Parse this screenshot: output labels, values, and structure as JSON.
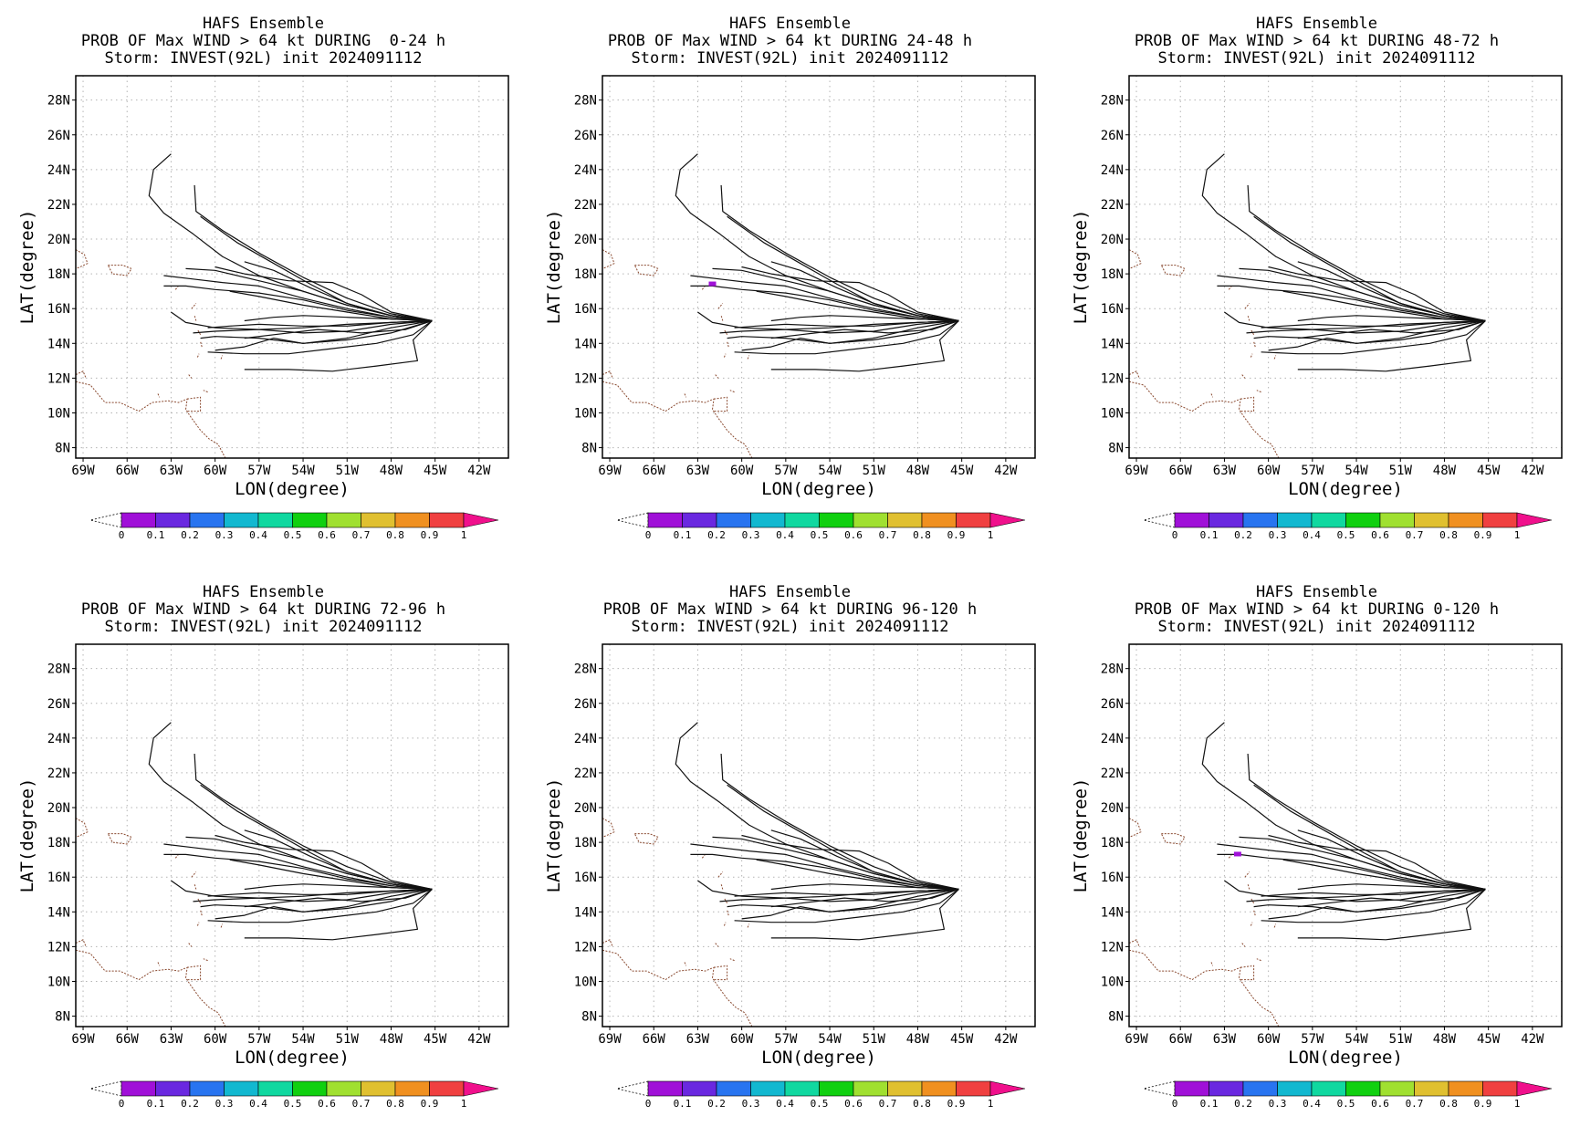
{
  "common": {
    "line1": "HAFS Ensemble",
    "line3": "Storm: INVEST(92L) init 2024091112",
    "xlabel": "LON(degree)",
    "ylabel": "LAT(degree)",
    "lon_ticks": [
      "69W",
      "66W",
      "63W",
      "60W",
      "57W",
      "54W",
      "51W",
      "48W",
      "45W",
      "42W"
    ],
    "lat_ticks": [
      "28N",
      "26N",
      "24N",
      "22N",
      "20N",
      "18N",
      "16N",
      "14N",
      "12N",
      "10N",
      "8N"
    ],
    "colorbar_labels": [
      "0",
      "0.1",
      "0.2",
      "0.3",
      "0.4",
      "0.5",
      "0.6",
      "0.7",
      "0.8",
      "0.9",
      "1"
    ],
    "colorbar_colors": [
      "#ffffff",
      "#a010d8",
      "#6a28e0",
      "#2874f0",
      "#12b8d0",
      "#10d8a0",
      "#10d010",
      "#a0e030",
      "#e0c030",
      "#f09020",
      "#f04040",
      "#f0108c"
    ]
  },
  "chart_data": [
    {
      "type": "map",
      "line2": "PROB OF Max WIND > 64 kt DURING  0-24 h",
      "lon_range": [
        -69.5,
        -40
      ],
      "lat_range": [
        7.4,
        29.4
      ],
      "max_prob": "",
      "prob_marks": []
    },
    {
      "type": "map",
      "line2": "PROB OF Max WIND > 64 kt DURING 24-48 h",
      "lon_range": [
        -69.5,
        -40
      ],
      "lat_range": [
        7.4,
        29.4
      ],
      "max_prob": "",
      "prob_marks": [
        {
          "lon": -62.0,
          "lat": 17.4,
          "bin": "0-0.1"
        }
      ]
    },
    {
      "type": "map",
      "line2": "PROB OF Max WIND > 64 kt DURING 48-72 h",
      "lon_range": [
        -69.5,
        -40
      ],
      "lat_range": [
        7.4,
        29.4
      ],
      "max_prob": "",
      "prob_marks": []
    },
    {
      "type": "map",
      "line2": "PROB OF Max WIND > 64 kt DURING 72-96 h",
      "lon_range": [
        -69.5,
        -40
      ],
      "lat_range": [
        7.4,
        29.4
      ],
      "max_prob": "",
      "prob_marks": []
    },
    {
      "type": "map",
      "line2": "PROB OF Max WIND > 64 kt DURING 96-120 h",
      "lon_range": [
        -69.5,
        -40
      ],
      "lat_range": [
        7.4,
        29.4
      ],
      "max_prob": "",
      "prob_marks": []
    },
    {
      "type": "map",
      "line2": "PROB OF Max WIND > 64 kt DURING 0-120 h",
      "lon_range": [
        -69.5,
        -40
      ],
      "lat_range": [
        7.4,
        29.4
      ],
      "max_prob": "",
      "prob_marks": [
        {
          "lon": -62.1,
          "lat": 17.3,
          "bin": "0-0.1"
        }
      ]
    }
  ],
  "tracks": [
    [
      [
        -45.2,
        15.3
      ],
      [
        -48,
        15.6
      ],
      [
        -51,
        16.2
      ],
      [
        -54,
        17.0
      ],
      [
        -57,
        17.9
      ],
      [
        -59.5,
        19.0
      ],
      [
        -61.5,
        20.3
      ],
      [
        -63.5,
        21.5
      ],
      [
        -64.5,
        22.5
      ],
      [
        -64.2,
        24.0
      ],
      [
        -63.0,
        24.9
      ]
    ],
    [
      [
        -45.2,
        15.3
      ],
      [
        -48,
        15.7
      ],
      [
        -51,
        16.6
      ],
      [
        -54,
        17.8
      ],
      [
        -57,
        19.2
      ],
      [
        -59.5,
        20.5
      ],
      [
        -61.3,
        21.6
      ],
      [
        -61.4,
        23.1
      ]
    ],
    [
      [
        -45.2,
        15.3
      ],
      [
        -48,
        15.6
      ],
      [
        -51,
        16.3
      ],
      [
        -53.5,
        17.4
      ],
      [
        -56,
        18.6
      ],
      [
        -58.5,
        19.8
      ],
      [
        -61,
        21.3
      ]
    ],
    [
      [
        -45.2,
        15.3
      ],
      [
        -48,
        15.6
      ],
      [
        -51,
        16.2
      ],
      [
        -54,
        17.0
      ],
      [
        -57,
        17.6
      ],
      [
        -60,
        18.2
      ],
      [
        -62,
        18.3
      ]
    ],
    [
      [
        -45.2,
        15.3
      ],
      [
        -48,
        15.5
      ],
      [
        -51,
        16.0
      ],
      [
        -54,
        16.6
      ],
      [
        -57,
        17.3
      ],
      [
        -59.5,
        17.5
      ],
      [
        -61.5,
        17.7
      ],
      [
        -63.5,
        17.9
      ]
    ],
    [
      [
        -45.2,
        15.3
      ],
      [
        -48,
        15.6
      ],
      [
        -51,
        16.3
      ],
      [
        -53.5,
        17.2
      ],
      [
        -56,
        18.2
      ],
      [
        -58,
        18.7
      ]
    ],
    [
      [
        -45.2,
        15.3
      ],
      [
        -48,
        15.5
      ],
      [
        -51,
        15.9
      ],
      [
        -54,
        16.5
      ],
      [
        -57,
        16.9
      ],
      [
        -60,
        17.1
      ],
      [
        -62,
        17.3
      ],
      [
        -63.5,
        17.3
      ]
    ],
    [
      [
        -45.2,
        15.3
      ],
      [
        -48,
        15.4
      ],
      [
        -51,
        15.5
      ],
      [
        -54,
        15.6
      ],
      [
        -56,
        15.5
      ],
      [
        -58,
        15.3
      ]
    ],
    [
      [
        -45.2,
        15.3
      ],
      [
        -48,
        15.2
      ],
      [
        -51,
        15.1
      ],
      [
        -54,
        14.9
      ],
      [
        -57,
        14.8
      ],
      [
        -60,
        14.7
      ],
      [
        -61.5,
        14.6
      ]
    ],
    [
      [
        -45.2,
        15.3
      ],
      [
        -48,
        15.1
      ],
      [
        -51,
        14.7
      ],
      [
        -54,
        14.6
      ],
      [
        -57,
        14.8
      ],
      [
        -60,
        14.9
      ],
      [
        -62,
        15.2
      ],
      [
        -63,
        15.8
      ]
    ],
    [
      [
        -45.2,
        15.3
      ],
      [
        -48,
        14.9
      ],
      [
        -51,
        14.3
      ],
      [
        -54,
        14.0
      ],
      [
        -57,
        14.3
      ],
      [
        -60,
        14.4
      ],
      [
        -61,
        14.3
      ]
    ],
    [
      [
        -45.2,
        15.3
      ],
      [
        -48,
        14.6
      ],
      [
        -51,
        14.2
      ],
      [
        -54,
        14.0
      ],
      [
        -56,
        14.3
      ],
      [
        -58,
        13.8
      ],
      [
        -60,
        13.6
      ]
    ],
    [
      [
        -45.2,
        15.3
      ],
      [
        -46.5,
        14.5
      ],
      [
        -49,
        14.0
      ],
      [
        -52,
        13.7
      ],
      [
        -55,
        13.4
      ],
      [
        -58,
        13.4
      ],
      [
        -60.5,
        13.5
      ]
    ],
    [
      [
        -45.2,
        15.3
      ],
      [
        -46.5,
        14.2
      ],
      [
        -46.2,
        13.0
      ],
      [
        -49,
        12.7
      ],
      [
        -52,
        12.4
      ],
      [
        -55,
        12.5
      ],
      [
        -58,
        12.5
      ]
    ],
    [
      [
        -45.2,
        15.3
      ],
      [
        -48,
        15.2
      ],
      [
        -51,
        15.0
      ],
      [
        -54,
        15.0
      ],
      [
        -57,
        15.1
      ],
      [
        -59,
        15.0
      ],
      [
        -60.5,
        14.9
      ]
    ],
    [
      [
        -45.2,
        15.3
      ],
      [
        -48,
        15.8
      ],
      [
        -50,
        16.8
      ],
      [
        -52,
        17.5
      ],
      [
        -55,
        17.6
      ],
      [
        -58,
        18.0
      ],
      [
        -60,
        18.4
      ]
    ],
    [
      [
        -45.2,
        15.3
      ],
      [
        -48,
        15.4
      ],
      [
        -51,
        15.8
      ],
      [
        -54,
        16.2
      ],
      [
        -57,
        16.7
      ],
      [
        -59,
        17.0
      ]
    ],
    [
      [
        -45.2,
        15.3
      ],
      [
        -47,
        14.8
      ],
      [
        -50,
        14.6
      ],
      [
        -53,
        14.8
      ],
      [
        -56,
        14.5
      ],
      [
        -58,
        14.3
      ]
    ]
  ],
  "coasts": [
    [
      [
        -69.5,
        19.4
      ],
      [
        -68.9,
        19.1
      ],
      [
        -68.7,
        18.6
      ],
      [
        -69.2,
        18.4
      ],
      [
        -69.5,
        18.3
      ]
    ],
    [
      [
        -67.3,
        18.5
      ],
      [
        -66.3,
        18.5
      ],
      [
        -65.7,
        18.3
      ],
      [
        -66.0,
        17.9
      ],
      [
        -67.0,
        18.0
      ],
      [
        -67.3,
        18.5
      ]
    ],
    [
      [
        -69.5,
        12.2
      ],
      [
        -69.0,
        12.4
      ],
      [
        -68.8,
        12.0
      ]
    ],
    [
      [
        -69.5,
        11.8
      ],
      [
        -68.5,
        11.6
      ],
      [
        -67.5,
        10.6
      ],
      [
        -66.5,
        10.6
      ],
      [
        -65.2,
        10.1
      ],
      [
        -64.3,
        10.6
      ],
      [
        -63.2,
        10.7
      ],
      [
        -62.5,
        10.6
      ],
      [
        -61.9,
        10.8
      ],
      [
        -62.0,
        10.2
      ],
      [
        -61.6,
        9.7
      ],
      [
        -61.0,
        9.0
      ],
      [
        -60.4,
        8.5
      ],
      [
        -59.8,
        8.2
      ],
      [
        -59.3,
        7.4
      ]
    ],
    [
      [
        -61.9,
        10.8
      ],
      [
        -61.0,
        10.9
      ],
      [
        -61.0,
        10.1
      ],
      [
        -61.9,
        10.1
      ]
    ],
    [
      [
        -63.9,
        11.1
      ],
      [
        -63.8,
        10.9
      ]
    ],
    [
      [
        -61.8,
        12.2
      ],
      [
        -61.6,
        12.0
      ]
    ],
    [
      [
        -61.2,
        13.2
      ],
      [
        -61.1,
        13.4
      ]
    ],
    [
      [
        -60.9,
        13.8
      ],
      [
        -61.0,
        14.1
      ]
    ],
    [
      [
        -61.0,
        14.5
      ],
      [
        -61.2,
        14.8
      ]
    ],
    [
      [
        -61.3,
        15.3
      ],
      [
        -61.4,
        15.6
      ]
    ],
    [
      [
        -61.6,
        16.0
      ],
      [
        -61.3,
        16.3
      ]
    ],
    [
      [
        -59.6,
        13.1
      ],
      [
        -59.5,
        13.3
      ]
    ],
    [
      [
        -62.7,
        17.1
      ],
      [
        -62.5,
        17.3
      ]
    ],
    [
      [
        -60.5,
        11.2
      ],
      [
        -60.8,
        11.3
      ]
    ]
  ]
}
